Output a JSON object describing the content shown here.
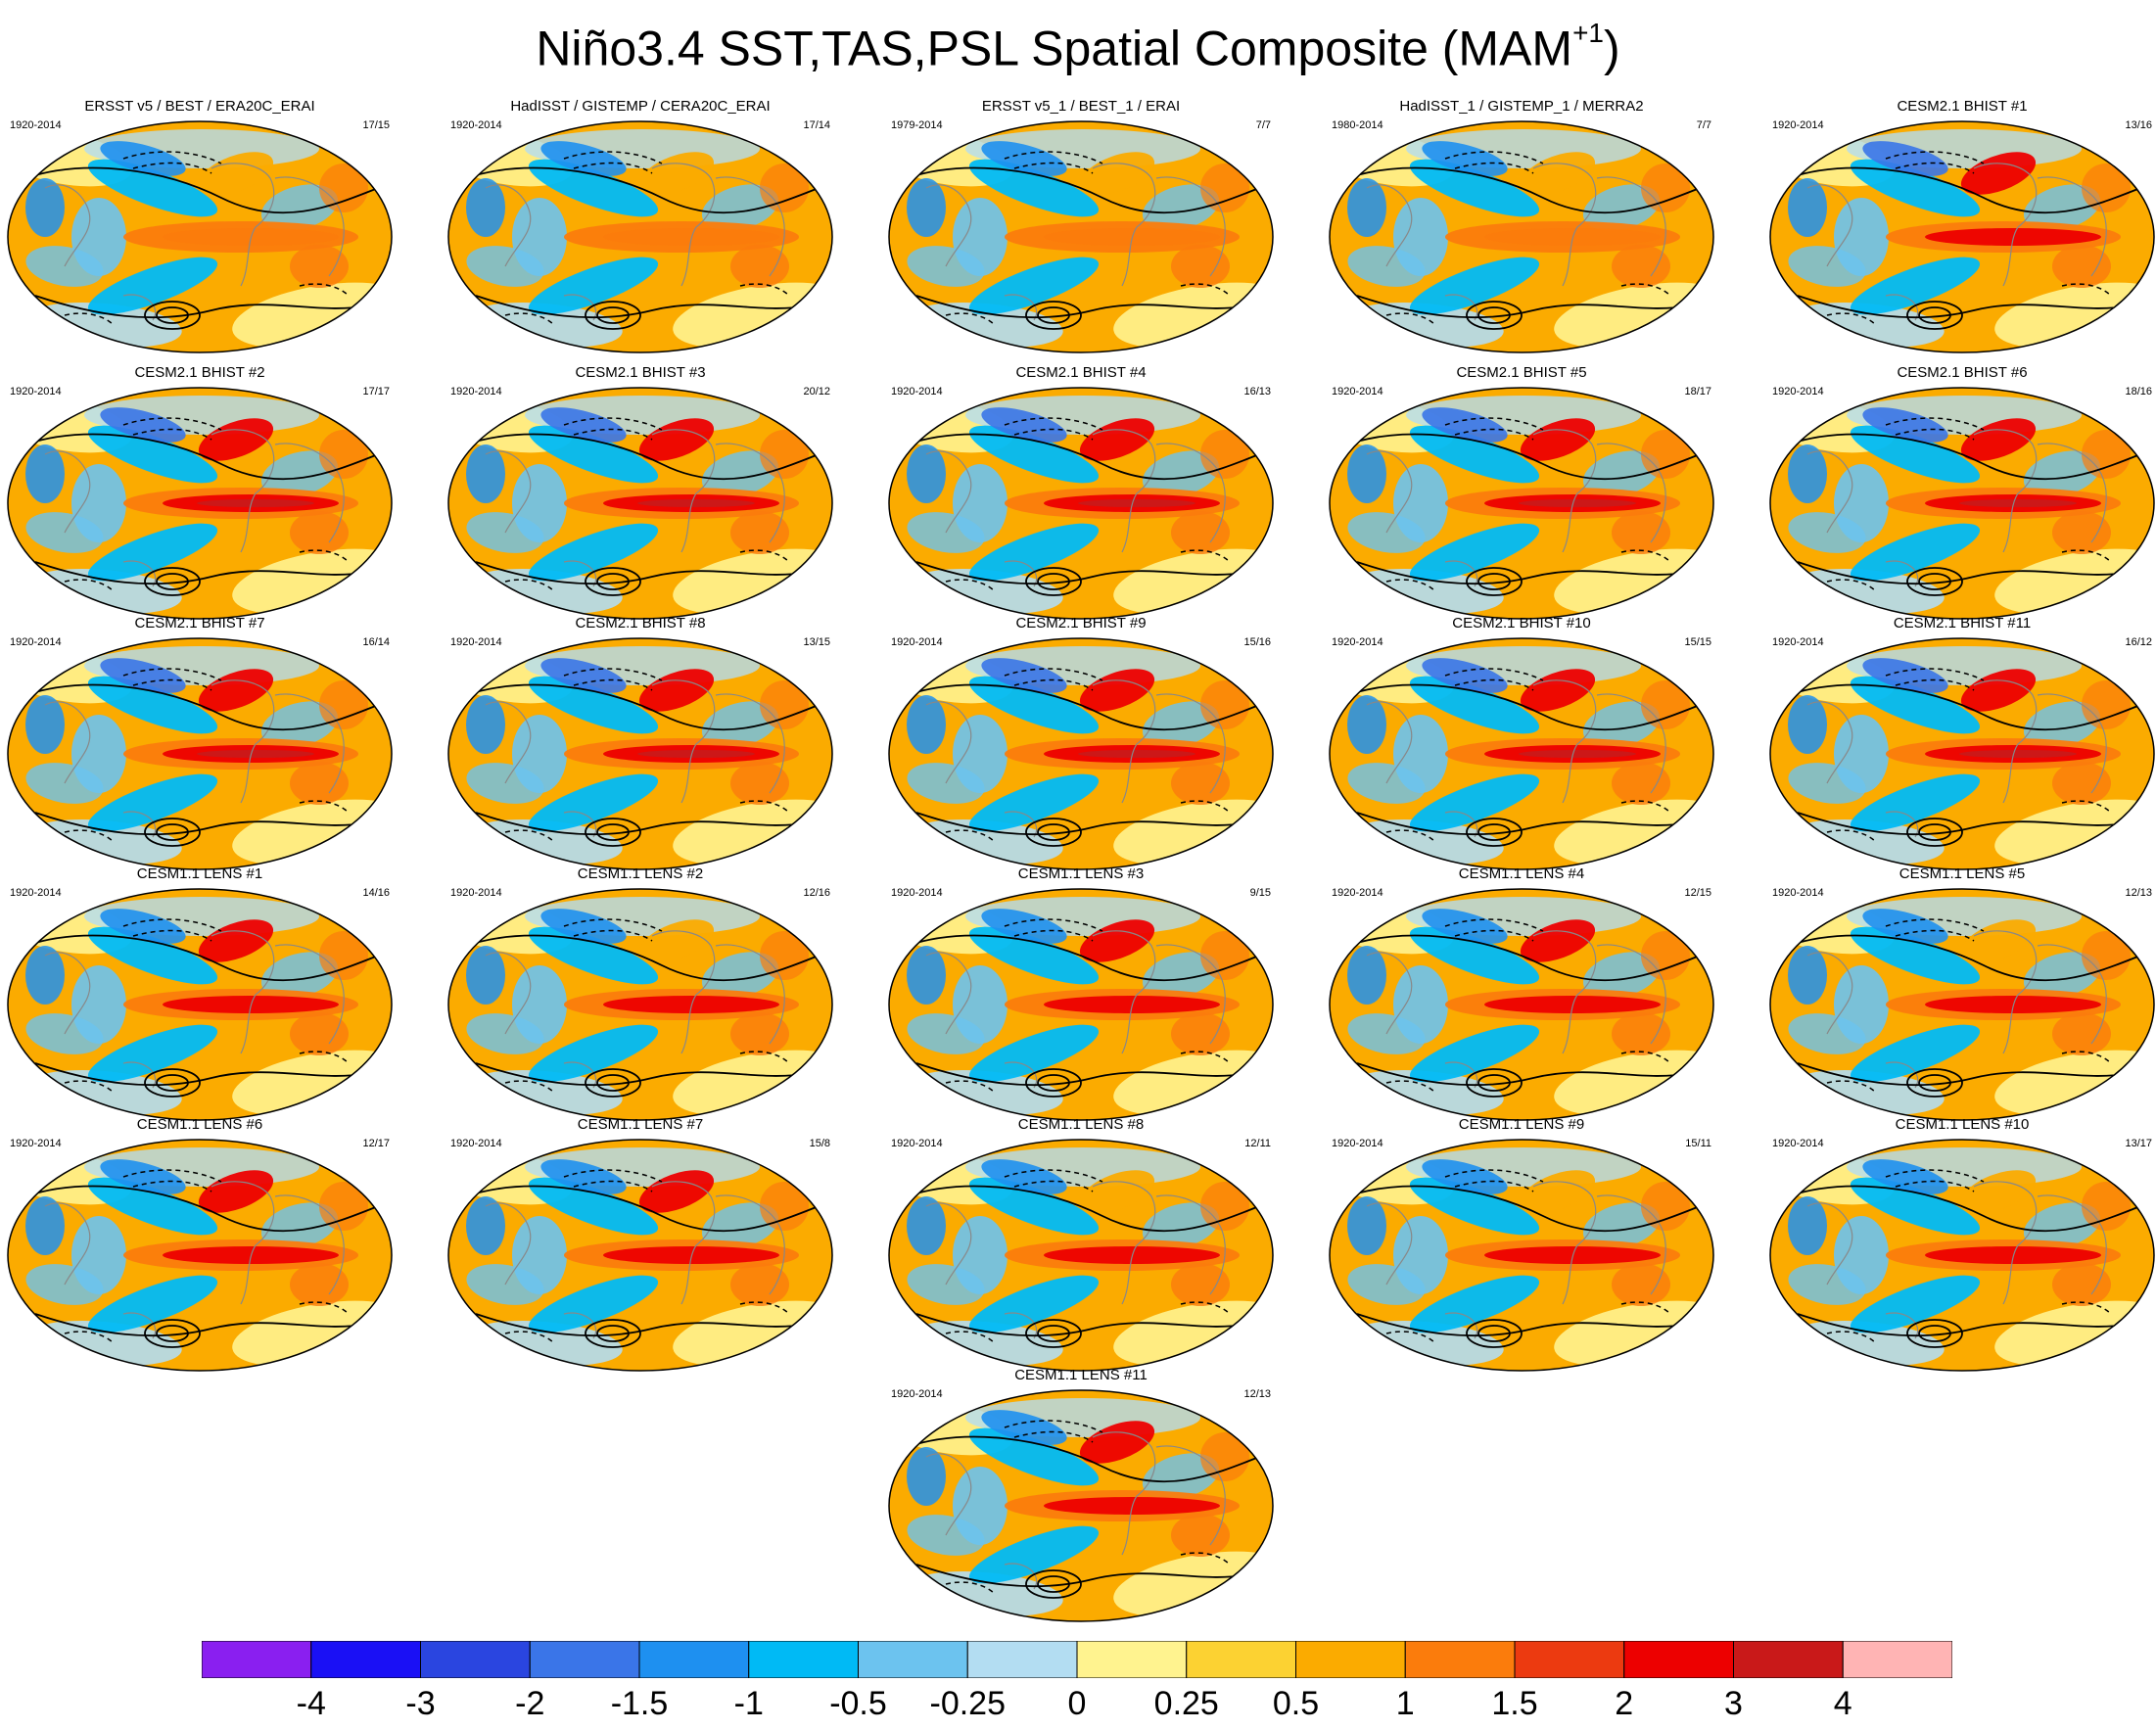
{
  "title": {
    "main": "Niño3.4 SST,TAS,PSL Spatial Composite (MAM",
    "sup": "+1",
    "close": ")"
  },
  "panels": [
    {
      "title": "ERSST v5 / BEST / ERA20C_ERAI",
      "period": "1920-2014",
      "count": "17/15",
      "intensity": 0.45
    },
    {
      "title": "HadISST / GISTEMP / CERA20C_ERAI",
      "period": "1920-2014",
      "count": "17/14",
      "intensity": 0.35
    },
    {
      "title": "ERSST v5_1 / BEST_1 / ERAI",
      "period": "1979-2014",
      "count": "7/7",
      "intensity": 0.5
    },
    {
      "title": "HadISST_1 / GISTEMP_1 / MERRA2",
      "period": "1980-2014",
      "count": "7/7",
      "intensity": 0.4
    },
    {
      "title": "CESM2.1 BHIST #1",
      "period": "1920-2014",
      "count": "13/16",
      "intensity": 0.85
    },
    {
      "title": "CESM2.1 BHIST #2",
      "period": "1920-2014",
      "count": "17/17",
      "intensity": 1.0
    },
    {
      "title": "CESM2.1 BHIST #3",
      "period": "1920-2014",
      "count": "20/12",
      "intensity": 1.0
    },
    {
      "title": "CESM2.1 BHIST #4",
      "period": "1920-2014",
      "count": "16/13",
      "intensity": 1.0
    },
    {
      "title": "CESM2.1 BHIST #5",
      "period": "1920-2014",
      "count": "18/17",
      "intensity": 1.0
    },
    {
      "title": "CESM2.1 BHIST #6",
      "period": "1920-2014",
      "count": "18/16",
      "intensity": 0.95
    },
    {
      "title": "CESM2.1 BHIST #7",
      "period": "1920-2014",
      "count": "16/14",
      "intensity": 0.9
    },
    {
      "title": "CESM2.1 BHIST #8",
      "period": "1920-2014",
      "count": "13/15",
      "intensity": 0.95
    },
    {
      "title": "CESM2.1 BHIST #9",
      "period": "1920-2014",
      "count": "15/16",
      "intensity": 0.95
    },
    {
      "title": "CESM2.1 BHIST #10",
      "period": "1920-2014",
      "count": "15/15",
      "intensity": 1.0
    },
    {
      "title": "CESM2.1 BHIST #11",
      "period": "1920-2014",
      "count": "16/12",
      "intensity": 0.9
    },
    {
      "title": "CESM1.1 LENS #1",
      "period": "1920-2014",
      "count": "14/16",
      "intensity": 0.75
    },
    {
      "title": "CESM1.1 LENS #2",
      "period": "1920-2014",
      "count": "12/16",
      "intensity": 0.7
    },
    {
      "title": "CESM1.1 LENS #3",
      "period": "1920-2014",
      "count": "9/15",
      "intensity": 0.75
    },
    {
      "title": "CESM1.1 LENS #4",
      "period": "1920-2014",
      "count": "12/15",
      "intensity": 0.75
    },
    {
      "title": "CESM1.1 LENS #5",
      "period": "1920-2014",
      "count": "12/13",
      "intensity": 0.7
    },
    {
      "title": "CESM1.1 LENS #6",
      "period": "1920-2014",
      "count": "12/17",
      "intensity": 0.75
    },
    {
      "title": "CESM1.1 LENS #7",
      "period": "1920-2014",
      "count": "15/8",
      "intensity": 0.75
    },
    {
      "title": "CESM1.1 LENS #8",
      "period": "1920-2014",
      "count": "12/11",
      "intensity": 0.7
    },
    {
      "title": "CESM1.1 LENS #9",
      "period": "1920-2014",
      "count": "15/11",
      "intensity": 0.65
    },
    {
      "title": "CESM1.1 LENS #10",
      "period": "1920-2014",
      "count": "13/17",
      "intensity": 0.7
    },
    {
      "title": "CESM1.1 LENS #11",
      "period": "1920-2014",
      "count": "12/13",
      "intensity": 0.75
    }
  ],
  "colorbar": {
    "colors": [
      "#8a1ff0",
      "#1a10f5",
      "#2a45e0",
      "#3a75e8",
      "#1e90f0",
      "#00baf5",
      "#6cc3ef",
      "#b3ddf2",
      "#fff38f",
      "#fcd232",
      "#fbab00",
      "#fb7c0c",
      "#ec3a10",
      "#ed0000",
      "#c91919",
      "#ffb4b4"
    ],
    "labels": [
      "-4",
      "-3",
      "-2",
      "-1.5",
      "-1",
      "-0.5",
      "-0.25",
      "0",
      "0.25",
      "0.5",
      "1",
      "1.5",
      "2",
      "3",
      "4"
    ]
  }
}
